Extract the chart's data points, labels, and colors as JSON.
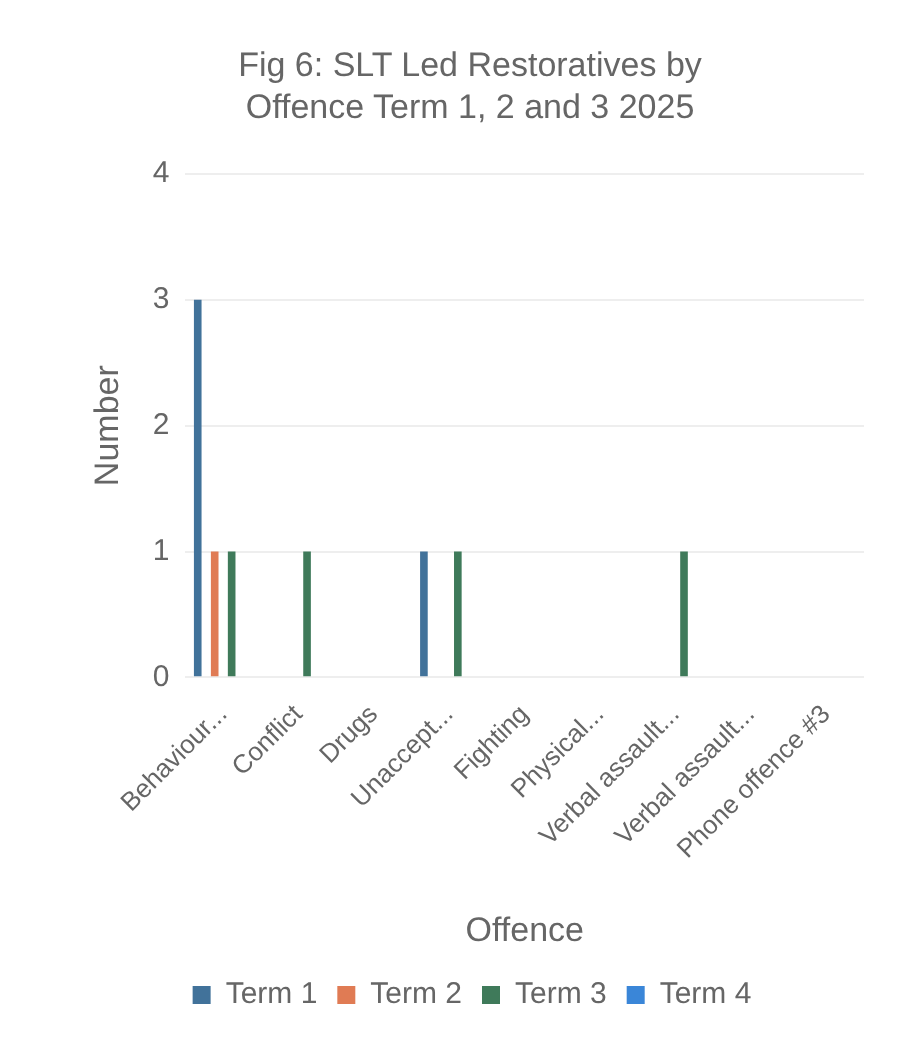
{
  "chart_data": {
    "type": "bar",
    "title": "Fig 6: SLT Led Restoratives by Offence Term 1, 2 and 3 2025",
    "xlabel": "Offence",
    "ylabel": "Number",
    "categories": [
      "Behaviour...",
      "Conflict",
      "Drugs",
      "Unaccept...",
      "Fighting",
      "Physical...",
      "Verbal assault...",
      "Verbal assault...",
      "Phone offence #3"
    ],
    "series": [
      {
        "name": "Term 1",
        "color": "#41729a",
        "values": [
          3,
          0,
          0,
          1,
          0,
          0,
          0,
          0,
          0
        ]
      },
      {
        "name": "Term 2",
        "color": "#e07b54",
        "values": [
          1,
          0,
          0,
          0,
          0,
          0,
          0,
          0,
          0
        ]
      },
      {
        "name": "Term 3",
        "color": "#3f7a5a",
        "values": [
          1,
          1,
          0,
          1,
          0,
          0,
          1,
          0,
          0
        ]
      },
      {
        "name": "Term 4",
        "color": "#3a86d8",
        "values": [
          0,
          0,
          0,
          0,
          0,
          0,
          0,
          0,
          0
        ]
      }
    ],
    "ylim": [
      0,
      4
    ],
    "yticks": [
      0,
      1,
      2,
      3,
      4
    ],
    "grid": "y",
    "legend": "bottom"
  }
}
